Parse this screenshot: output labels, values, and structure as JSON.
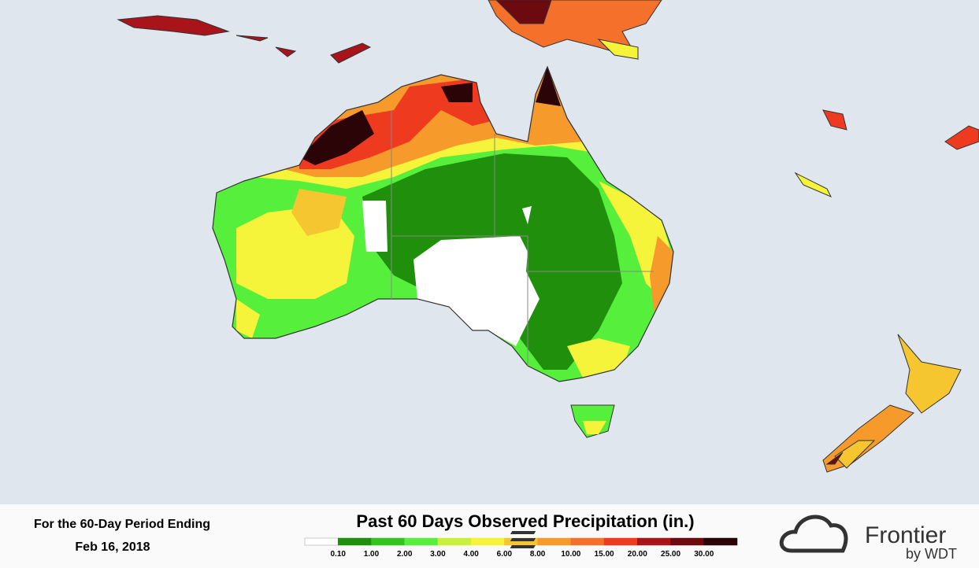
{
  "footer": {
    "period_label": "For the 60-Day Period Ending",
    "date": "Feb 16, 2018",
    "title": "Past 60 Days Observed Precipitation (in.)",
    "legend": {
      "colors": [
        "#ffffff",
        "#1f8f0c",
        "#33c41e",
        "#55ef3c",
        "#c9f03a",
        "#f6f43a",
        "#f6c630",
        "#f69a2c",
        "#f5702a",
        "#ee3a1e",
        "#a8141a",
        "#6c0a10",
        "#2a0406"
      ],
      "labels": [
        "0.10",
        "1.00",
        "2.00",
        "3.00",
        "4.00",
        "6.00",
        "8.00",
        "10.00",
        "15.00",
        "20.00",
        "25.00",
        "30.00"
      ]
    },
    "logo": {
      "name": "Frontier",
      "byline": "by WDT"
    }
  }
}
